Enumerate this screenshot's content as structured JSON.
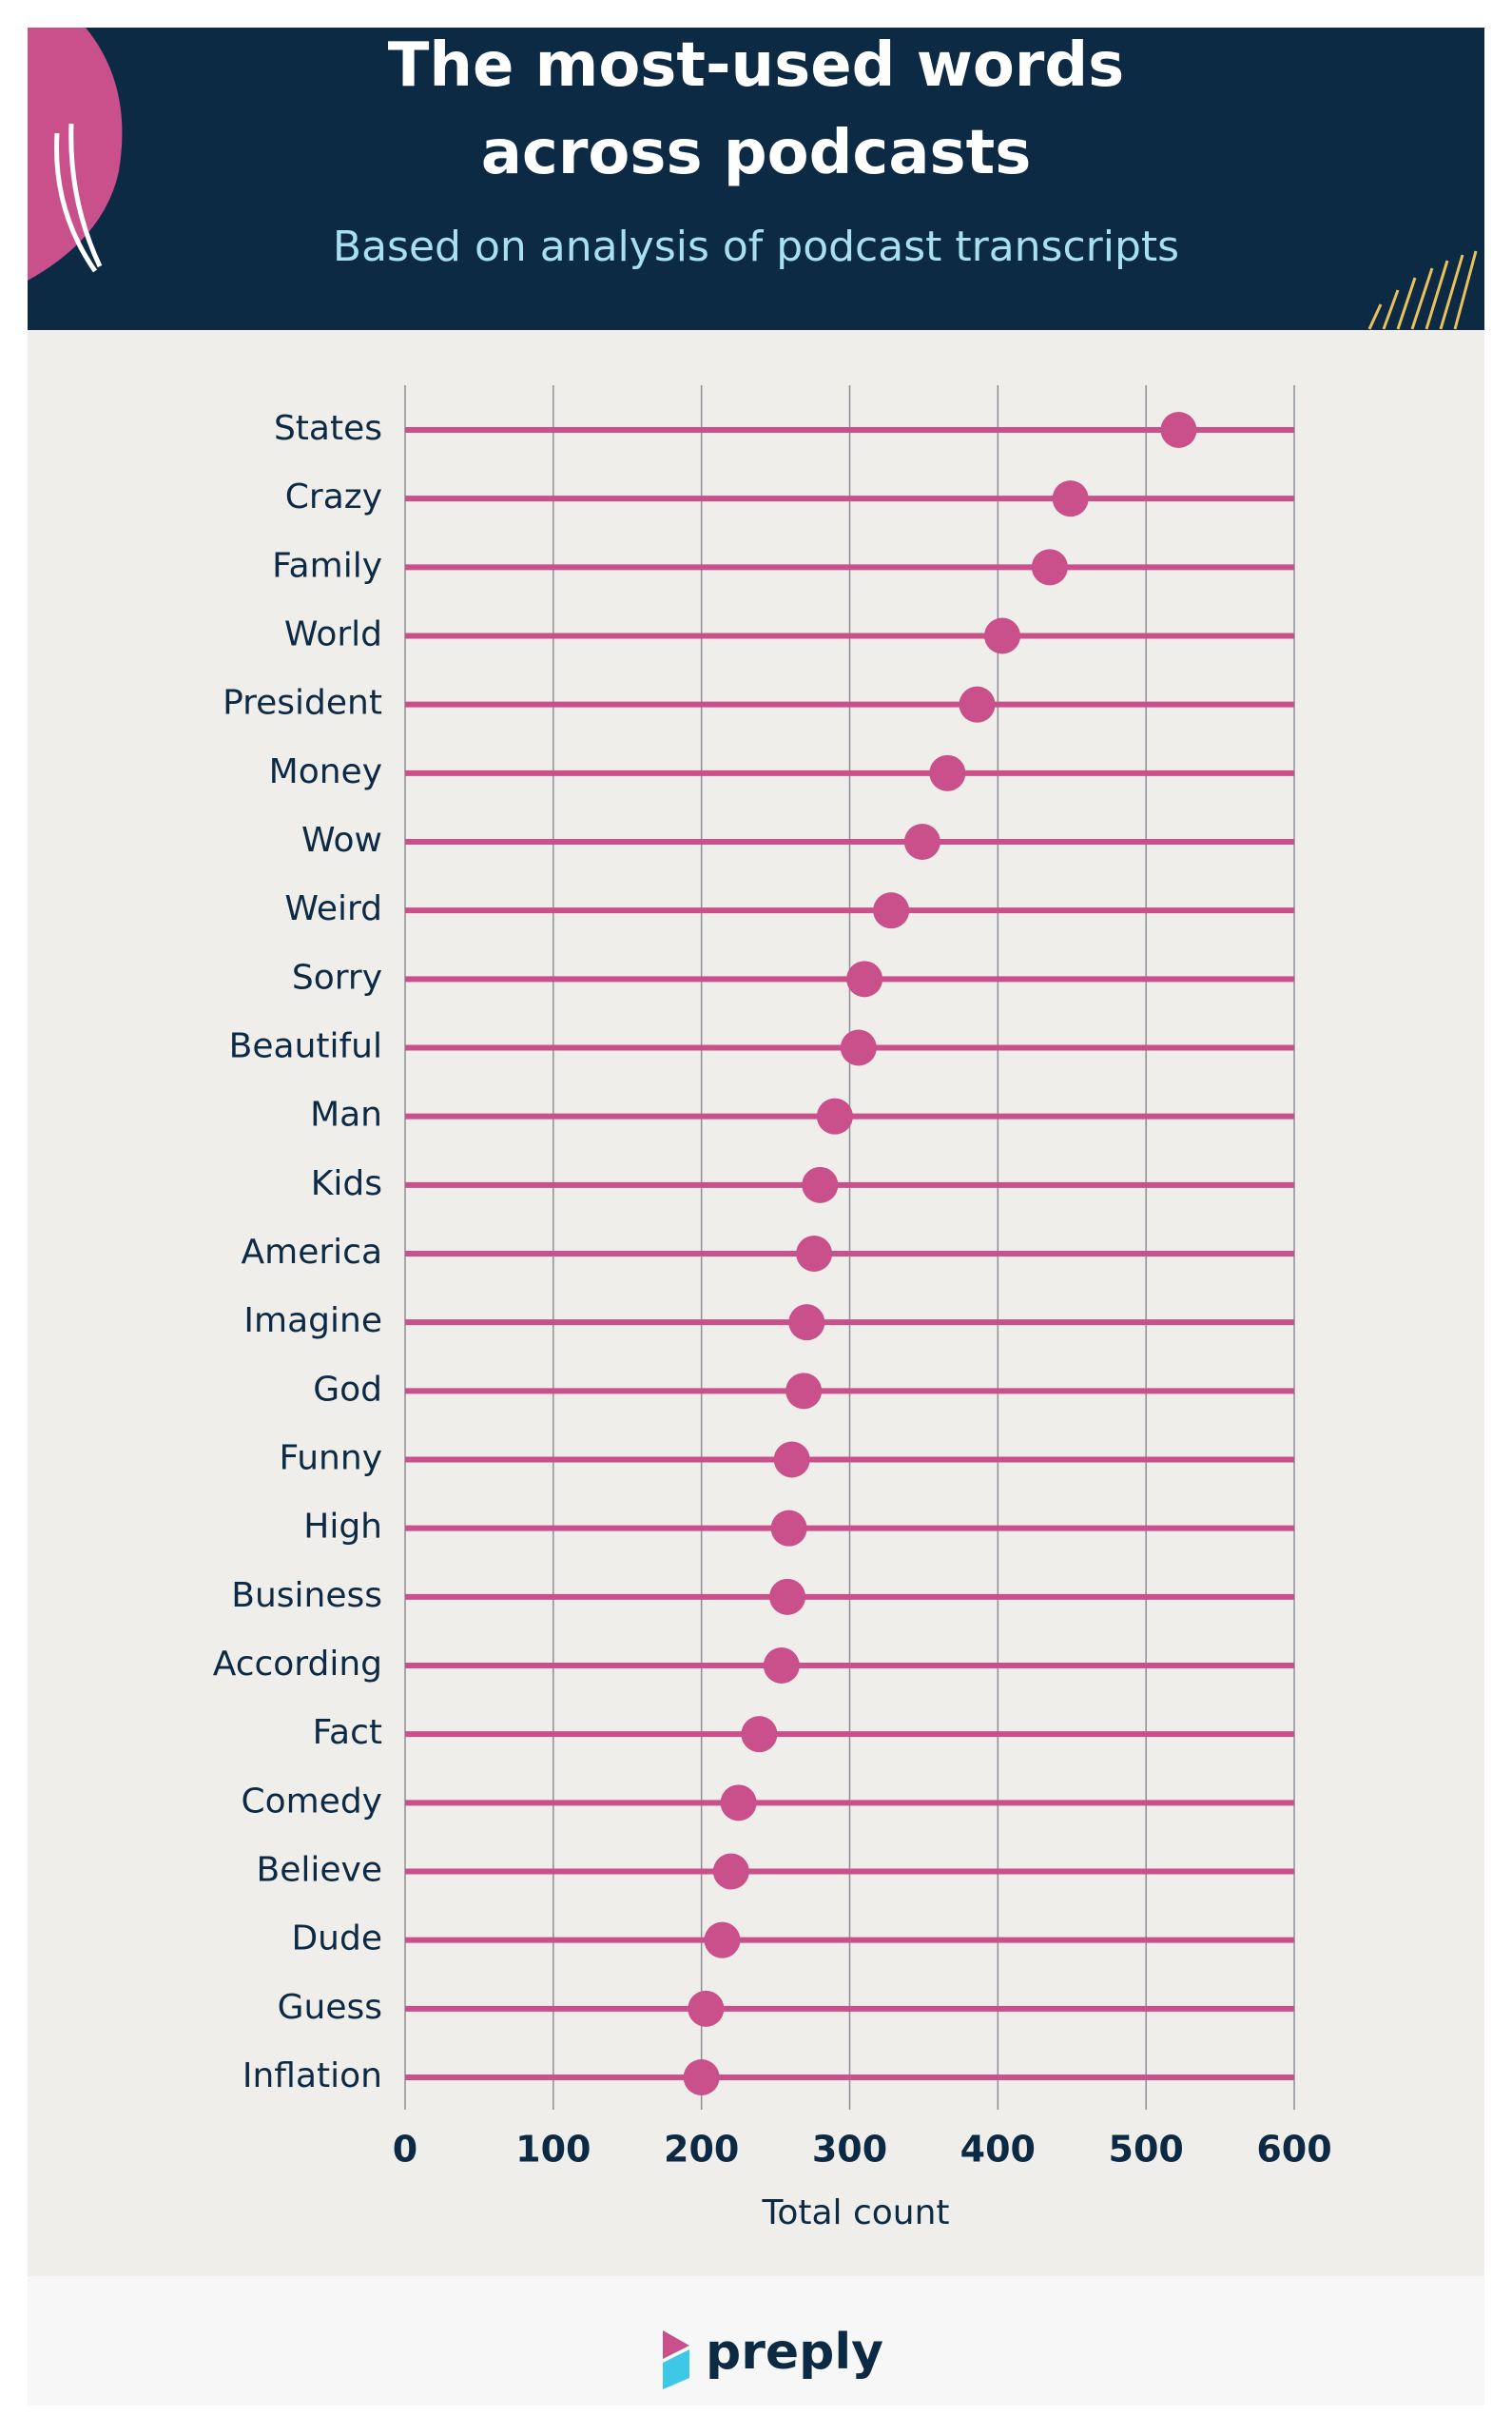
{
  "chart_data": {
    "type": "lollipop",
    "title": "The most-used words across podcasts",
    "subtitle": "Based on analysis of podcast transcripts",
    "x_label": "Total count",
    "categories": [
      "States",
      "Crazy",
      "Family",
      "World",
      "President",
      "Money",
      "Wow",
      "Weird",
      "Sorry",
      "Beautiful",
      "Man",
      "Kids",
      "America",
      "Imagine",
      "God",
      "Funny",
      "High",
      "Business",
      "According",
      "Fact",
      "Comedy",
      "Believe",
      "Dude",
      "Guess",
      "Inflation"
    ],
    "values": [
      522,
      449,
      435,
      403,
      386,
      366,
      349,
      328,
      310,
      306,
      290,
      280,
      276,
      271,
      269,
      261,
      259,
      258,
      254,
      239,
      225,
      220,
      214,
      203,
      200
    ],
    "color": "#c9508a",
    "xlim": [
      0,
      600
    ],
    "xticks": [
      0,
      100,
      200,
      300,
      400,
      500,
      600
    ],
    "grid": true
  },
  "footer": {
    "brand": "preply"
  }
}
